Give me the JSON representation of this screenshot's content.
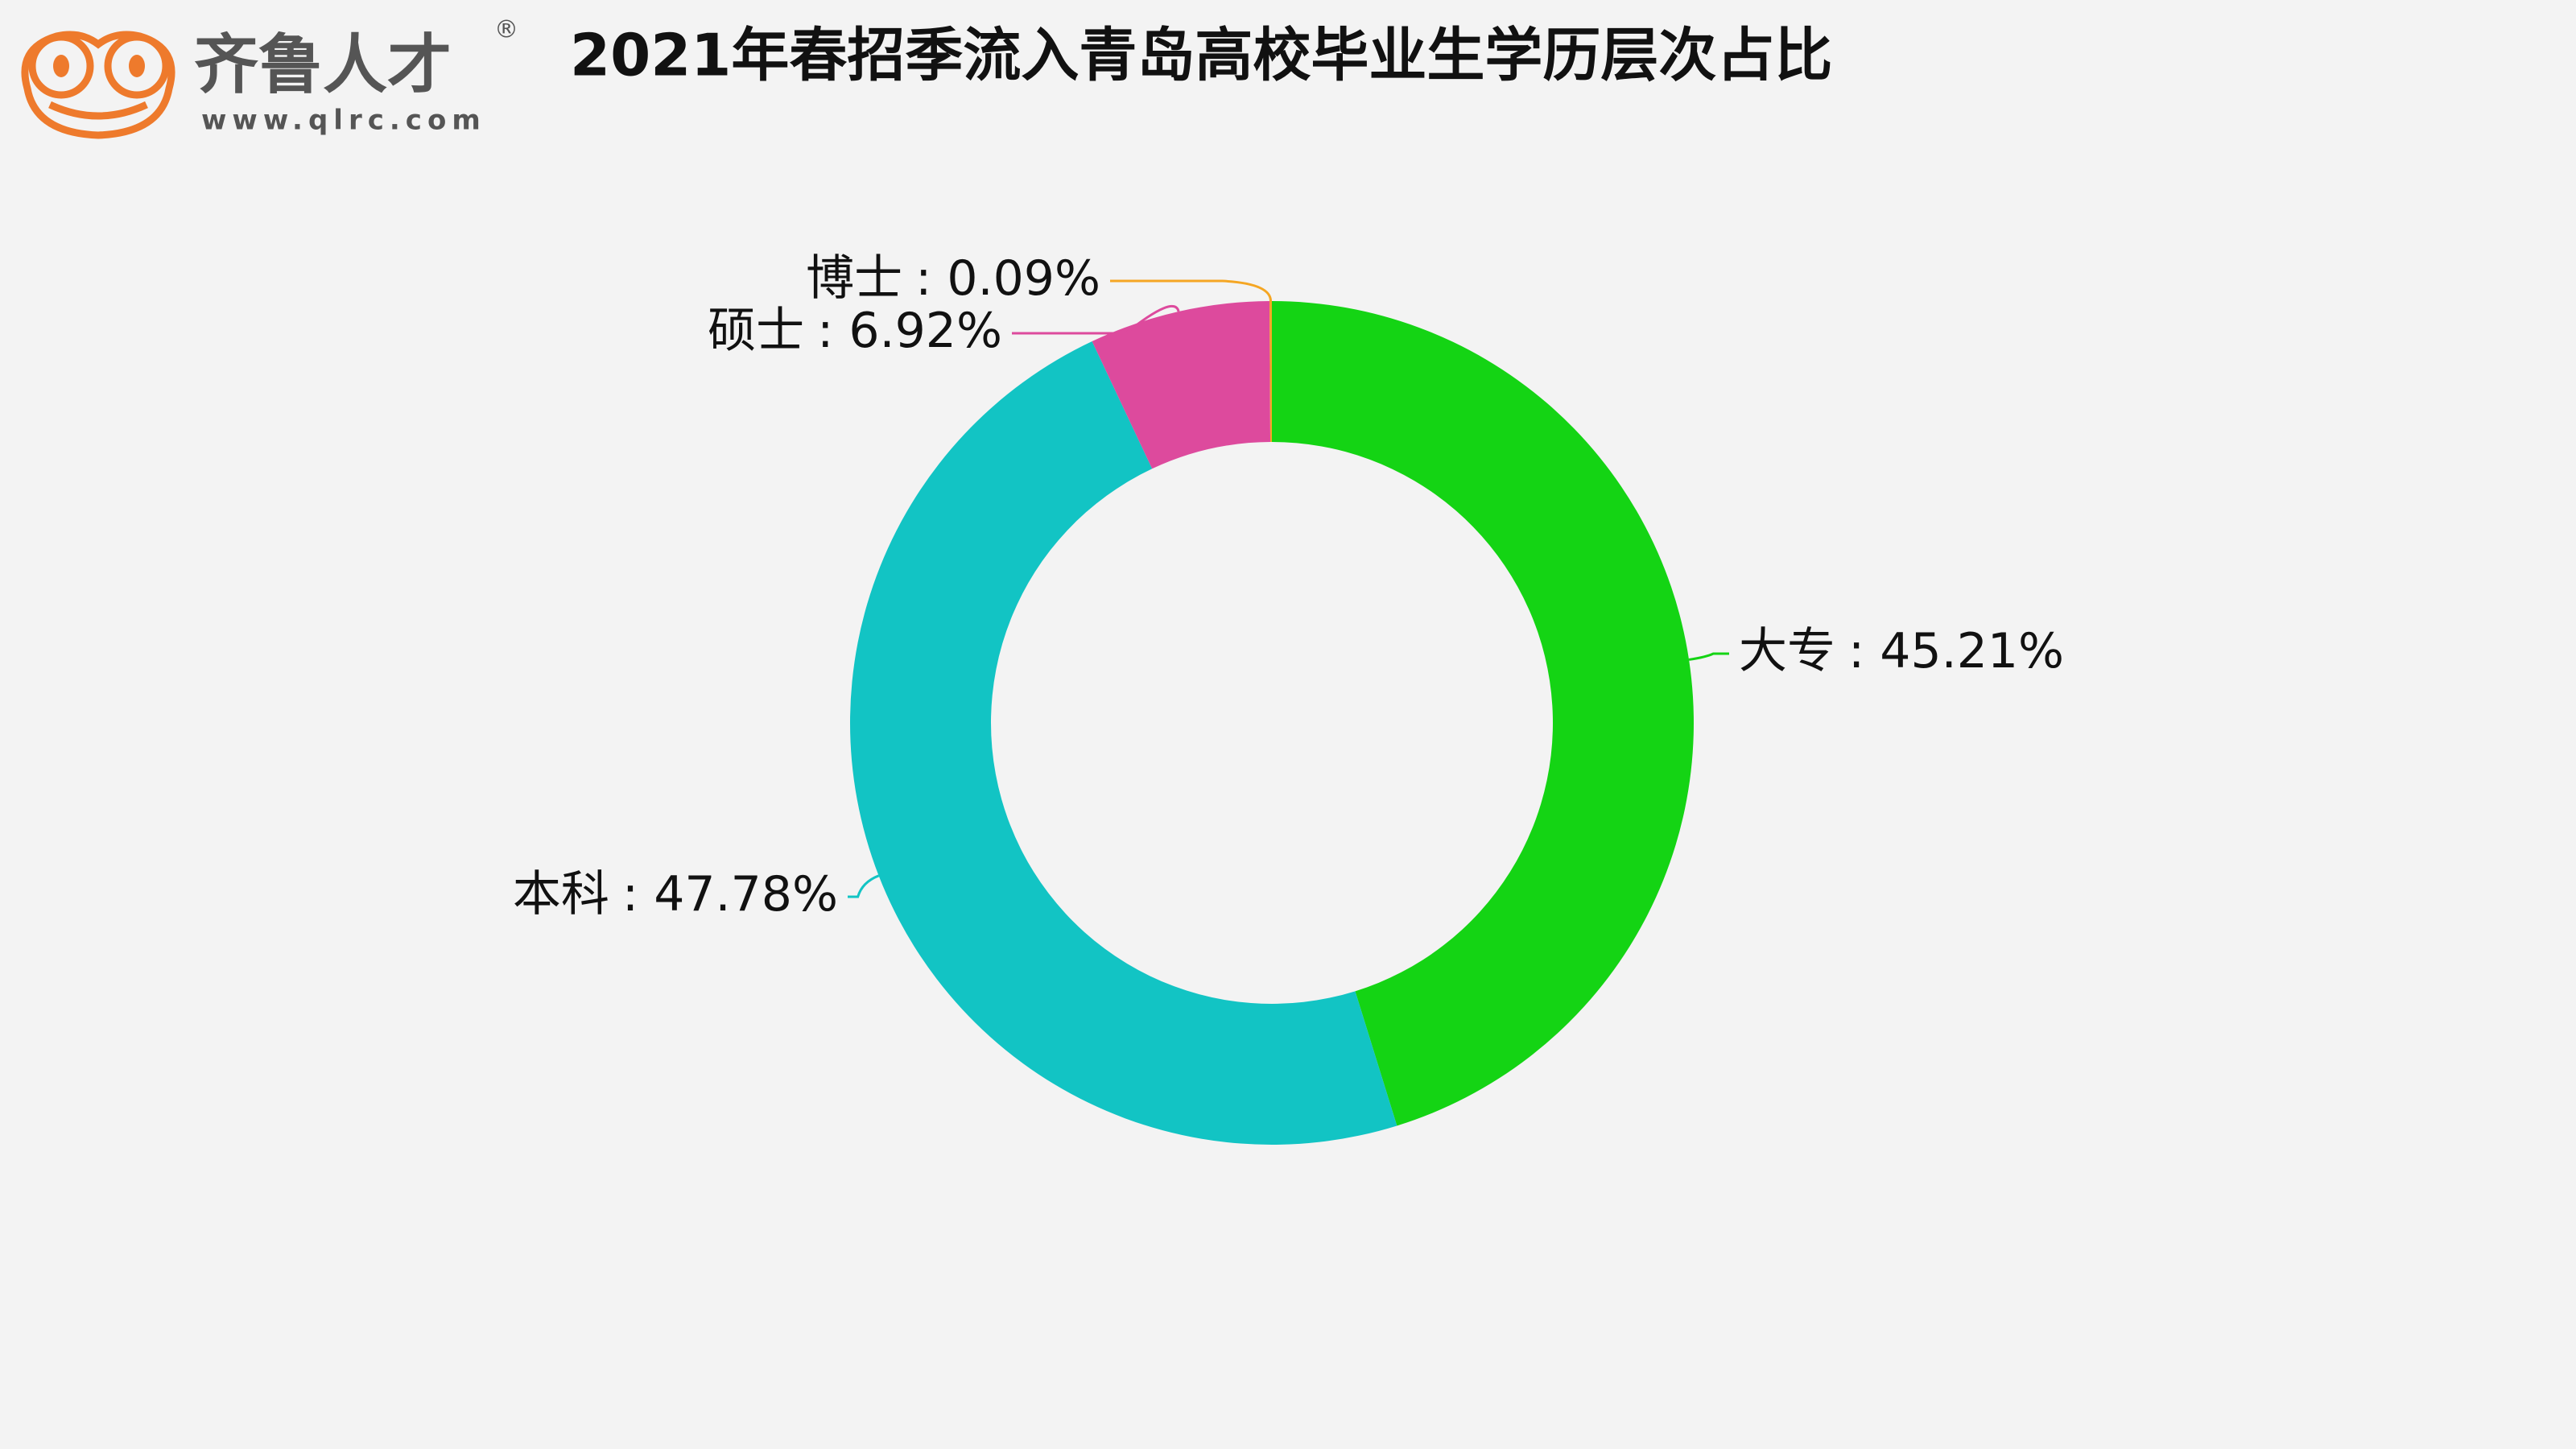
{
  "header": {
    "logo_name": "齐鲁人才",
    "logo_url": "www.qlrc.com",
    "logo_mark": "®"
  },
  "chart_data": {
    "type": "donut",
    "title": "2021年春招季流入青岛高校毕业生学历层次占比",
    "categories": [
      "大专",
      "本科",
      "硕士",
      "博士"
    ],
    "values": [
      45.21,
      47.78,
      6.92,
      0.09
    ],
    "value_labels": [
      ": 45.21%",
      ": 47.78%",
      ": 6.92%",
      ": 0.09%"
    ],
    "colors": [
      "#14d414",
      "#12c4c4",
      "#dd4a9d",
      "#f5a623"
    ]
  }
}
